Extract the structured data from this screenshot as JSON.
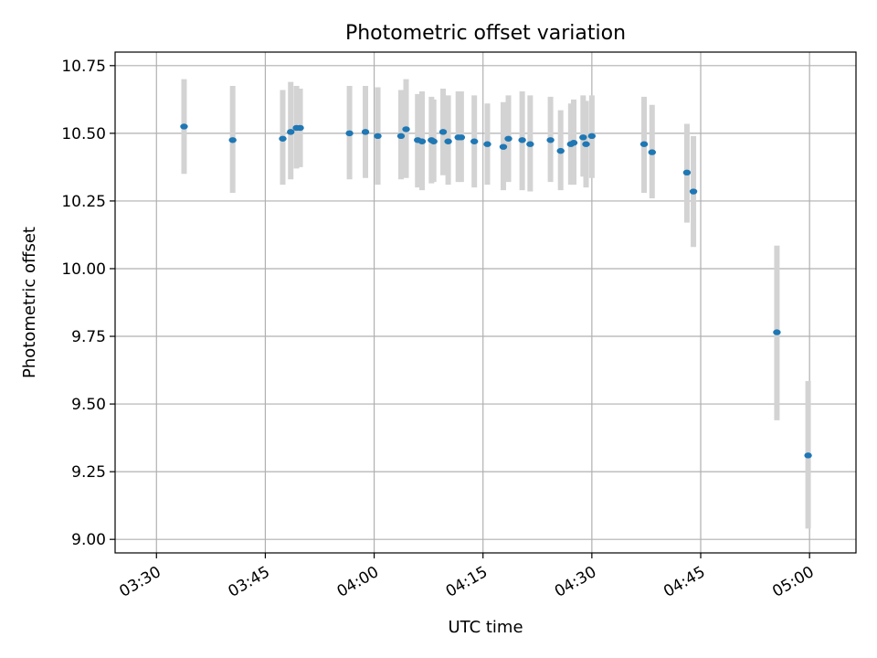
{
  "chart_data": {
    "type": "scatter",
    "title": "Photometric offset variation",
    "xlabel": "UTC time",
    "ylabel": "Photometric offset",
    "x_tick_labels": [
      "03:30",
      "03:45",
      "04:00",
      "04:15",
      "04:30",
      "04:45",
      "05:00"
    ],
    "x_tick_minutes": [
      210,
      225,
      240,
      255,
      270,
      285,
      300
    ],
    "xlim_minutes": [
      204.3,
      306.4
    ],
    "y_tick_labels": [
      "9.00",
      "9.25",
      "9.50",
      "9.75",
      "10.00",
      "10.25",
      "10.50",
      "10.75"
    ],
    "y_ticks": [
      9.0,
      9.25,
      9.5,
      9.75,
      10.0,
      10.25,
      10.5,
      10.75
    ],
    "ylim": [
      8.95,
      10.8
    ],
    "grid": true,
    "colors": {
      "point": "#1f77b4",
      "errorbar": "#d3d3d3",
      "grid": "#b0b0b0",
      "axis": "#000000"
    },
    "series": [
      {
        "name": "Photometric offset",
        "points": [
          {
            "t": 213.8,
            "y": 10.525,
            "lo": 10.35,
            "hi": 10.7
          },
          {
            "t": 220.5,
            "y": 10.475,
            "lo": 10.28,
            "hi": 10.675
          },
          {
            "t": 227.4,
            "y": 10.48,
            "lo": 10.31,
            "hi": 10.66
          },
          {
            "t": 228.5,
            "y": 10.505,
            "lo": 10.33,
            "hi": 10.69
          },
          {
            "t": 229.3,
            "y": 10.52,
            "lo": 10.37,
            "hi": 10.675
          },
          {
            "t": 229.8,
            "y": 10.52,
            "lo": 10.375,
            "hi": 10.665
          },
          {
            "t": 236.6,
            "y": 10.5,
            "lo": 10.33,
            "hi": 10.675
          },
          {
            "t": 238.8,
            "y": 10.505,
            "lo": 10.335,
            "hi": 10.675
          },
          {
            "t": 240.5,
            "y": 10.49,
            "lo": 10.31,
            "hi": 10.67
          },
          {
            "t": 243.7,
            "y": 10.49,
            "lo": 10.33,
            "hi": 10.66
          },
          {
            "t": 244.4,
            "y": 10.515,
            "lo": 10.335,
            "hi": 10.7
          },
          {
            "t": 246.0,
            "y": 10.475,
            "lo": 10.3,
            "hi": 10.645
          },
          {
            "t": 246.6,
            "y": 10.47,
            "lo": 10.29,
            "hi": 10.655
          },
          {
            "t": 247.9,
            "y": 10.475,
            "lo": 10.315,
            "hi": 10.635
          },
          {
            "t": 248.2,
            "y": 10.47,
            "lo": 10.32,
            "hi": 10.625
          },
          {
            "t": 249.5,
            "y": 10.505,
            "lo": 10.345,
            "hi": 10.665
          },
          {
            "t": 250.2,
            "y": 10.47,
            "lo": 10.31,
            "hi": 10.64
          },
          {
            "t": 251.6,
            "y": 10.485,
            "lo": 10.32,
            "hi": 10.655
          },
          {
            "t": 252.0,
            "y": 10.485,
            "lo": 10.32,
            "hi": 10.655
          },
          {
            "t": 253.8,
            "y": 10.47,
            "lo": 10.3,
            "hi": 10.64
          },
          {
            "t": 255.6,
            "y": 10.46,
            "lo": 10.31,
            "hi": 10.61
          },
          {
            "t": 257.8,
            "y": 10.45,
            "lo": 10.29,
            "hi": 10.615
          },
          {
            "t": 258.5,
            "y": 10.48,
            "lo": 10.32,
            "hi": 10.64
          },
          {
            "t": 260.4,
            "y": 10.475,
            "lo": 10.29,
            "hi": 10.655
          },
          {
            "t": 261.5,
            "y": 10.46,
            "lo": 10.285,
            "hi": 10.64
          },
          {
            "t": 264.3,
            "y": 10.475,
            "lo": 10.32,
            "hi": 10.635
          },
          {
            "t": 265.7,
            "y": 10.435,
            "lo": 10.29,
            "hi": 10.585
          },
          {
            "t": 267.1,
            "y": 10.46,
            "lo": 10.31,
            "hi": 10.61
          },
          {
            "t": 267.5,
            "y": 10.465,
            "lo": 10.31,
            "hi": 10.625
          },
          {
            "t": 268.8,
            "y": 10.485,
            "lo": 10.34,
            "hi": 10.64
          },
          {
            "t": 269.2,
            "y": 10.46,
            "lo": 10.3,
            "hi": 10.62
          },
          {
            "t": 270.0,
            "y": 10.49,
            "lo": 10.335,
            "hi": 10.64
          },
          {
            "t": 277.2,
            "y": 10.46,
            "lo": 10.28,
            "hi": 10.635
          },
          {
            "t": 278.3,
            "y": 10.43,
            "lo": 10.26,
            "hi": 10.605
          },
          {
            "t": 283.1,
            "y": 10.355,
            "lo": 10.17,
            "hi": 10.535
          },
          {
            "t": 284.0,
            "y": 10.285,
            "lo": 10.08,
            "hi": 10.49
          },
          {
            "t": 295.5,
            "y": 9.765,
            "lo": 9.44,
            "hi": 10.085
          },
          {
            "t": 299.8,
            "y": 9.31,
            "lo": 9.04,
            "hi": 9.585
          }
        ]
      }
    ]
  }
}
